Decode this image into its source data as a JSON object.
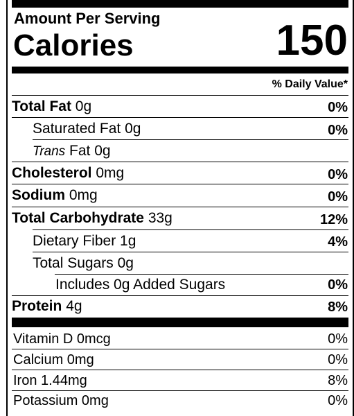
{
  "header": {
    "amount_per_serving": "Amount Per Serving",
    "calories_label": "Calories",
    "calories_value": "150"
  },
  "dv_header": "% Daily Value*",
  "nutrients": {
    "total_fat": {
      "label": "Total Fat",
      "amount": "0g",
      "dv": "0%"
    },
    "saturated_fat": {
      "label": "Saturated Fat 0g",
      "dv": "0%"
    },
    "trans_fat": {
      "label_italic": "Trans",
      "label": "Fat 0g"
    },
    "cholesterol": {
      "label": "Cholesterol",
      "amount": "0mg",
      "dv": "0%"
    },
    "sodium": {
      "label": "Sodium",
      "amount": "0mg",
      "dv": "0%"
    },
    "total_carbohydrate": {
      "label": "Total Carbohydrate",
      "amount": "33g",
      "dv": "12%"
    },
    "dietary_fiber": {
      "label": "Dietary Fiber 1g",
      "dv": "4%"
    },
    "total_sugars": {
      "label": "Total Sugars 0g"
    },
    "added_sugars": {
      "label": "Includes 0g Added Sugars",
      "dv": "0%"
    },
    "protein": {
      "label": "Protein",
      "amount": "4g",
      "dv": "8%"
    }
  },
  "vitamins": [
    {
      "label": "Vitamin D 0mcg",
      "dv": "0%"
    },
    {
      "label": "Calcium 0mg",
      "dv": "0%"
    },
    {
      "label": "Iron 1.44mg",
      "dv": "8%"
    },
    {
      "label": "Potassium 0mg",
      "dv": "0%"
    }
  ]
}
